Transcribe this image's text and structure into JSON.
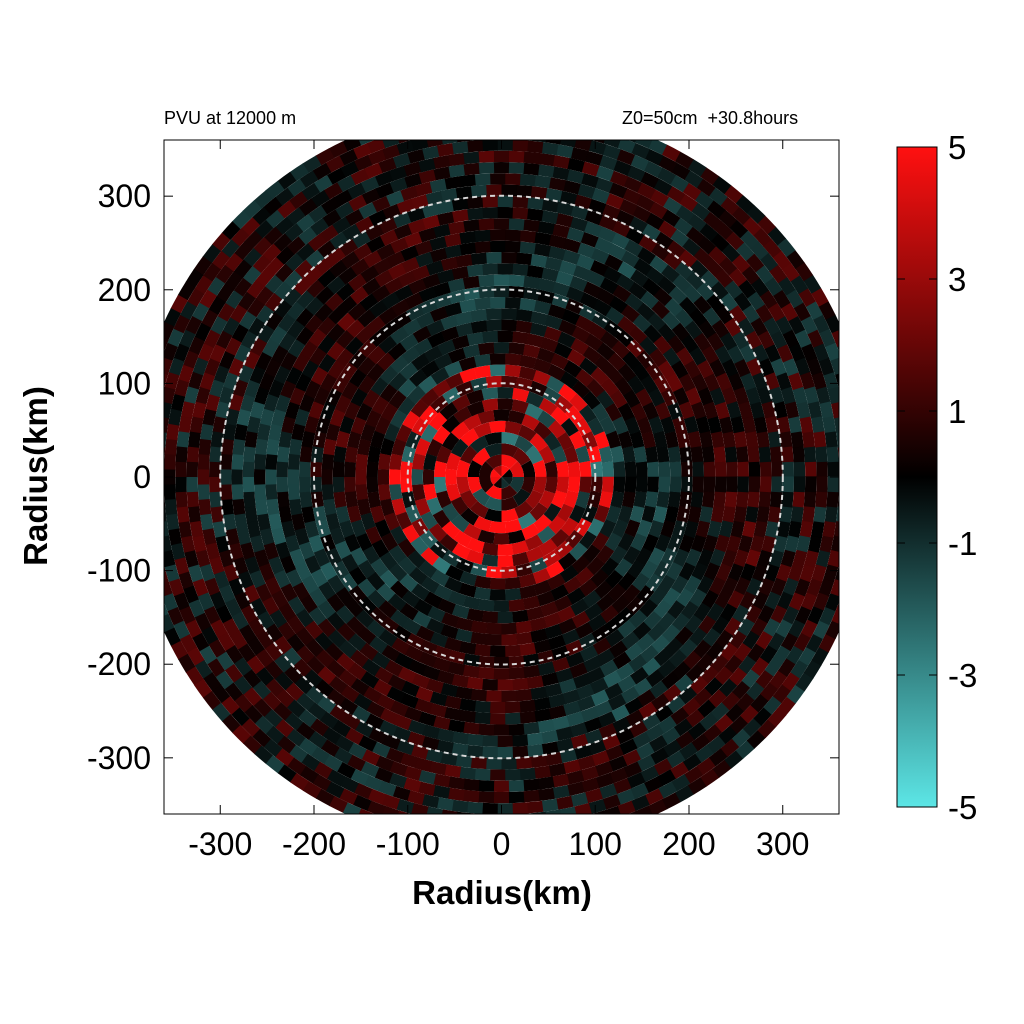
{
  "chart_data": {
    "type": "heatmap",
    "title_left": "PVU at 12000 m",
    "title_right": "Z0=50cm  +30.8hours",
    "xlabel": "Radius(km)",
    "ylabel": "Radius(km)",
    "xlim": [
      -360,
      360
    ],
    "ylim": [
      -360,
      360
    ],
    "x_ticks": [
      -300,
      -200,
      -100,
      0,
      100,
      200,
      300
    ],
    "y_ticks": [
      300,
      200,
      100,
      0,
      -100,
      -200,
      -300
    ],
    "domain_radius_km": 390,
    "dashed_circles_km": [
      100,
      200,
      300
    ],
    "colorbar": {
      "min": -5,
      "max": 5,
      "ticks": [
        5,
        3,
        1,
        -1,
        -3,
        -5
      ],
      "colors": {
        "negative": "#5ce6e6",
        "zero": "#000000",
        "positive": "#ff1010"
      }
    },
    "grid": false
  }
}
